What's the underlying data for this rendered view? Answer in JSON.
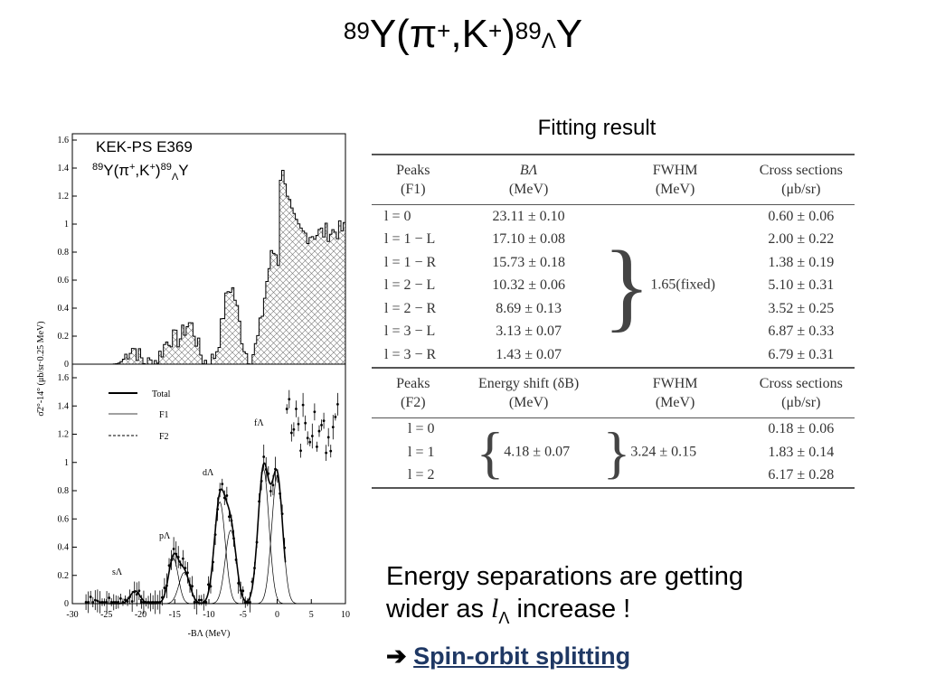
{
  "title": {
    "pre_sup": "89",
    "base": "Y(π",
    "plus1": "+",
    "mid": ",K",
    "plus2": "+",
    "close": ")",
    "sup2": "89",
    "lambda_sub": "Λ",
    "tail": "Y"
  },
  "fit_title": "Fitting result",
  "figure": {
    "inset_line1": "KEK-PS E369",
    "inset_sup": "89",
    "inset_base": "Y(π",
    "inset_plus1": "+",
    "inset_mid": ",K",
    "inset_plus2": "+",
    "inset_close": ")",
    "inset_sup2": "89",
    "inset_sub": "Λ",
    "inset_tail": "Y",
    "ylabel": "σ̄2°-14° (μb/sr·0.25 MeV)",
    "xlabel": "-BΛ (MeV)",
    "upper_yticks": [
      "1.6",
      "1.4",
      "1.2",
      "1",
      "0.8",
      "0.6",
      "0.4",
      "0.2",
      "0"
    ],
    "lower_yticks": [
      "1.6",
      "1.4",
      "1.2",
      "1",
      "0.8",
      "0.6",
      "0.4",
      "0.2",
      "0"
    ],
    "xticks": [
      "-30",
      "-25",
      "-20",
      "-15",
      "-10",
      "-5",
      "0",
      "5",
      "10"
    ],
    "legend": [
      "Total",
      "F1",
      "F2"
    ],
    "peak_labels": [
      "sΛ",
      "pΛ",
      "dΛ",
      "fΛ"
    ]
  },
  "table": {
    "section1_header": {
      "c1a": "Peaks",
      "c1b": "(F1)",
      "c2a": "BΛ",
      "c2b": "(MeV)",
      "c3a": "FWHM",
      "c3b": "(MeV)",
      "c4a": "Cross sections",
      "c4b": "(μb/sr)"
    },
    "section1_rows": [
      {
        "peak": "l = 0",
        "b": "23.11 ± 0.10",
        "xs": "0.60 ± 0.06"
      },
      {
        "peak": "l = 1 − L",
        "b": "17.10 ± 0.08",
        "xs": "2.00 ± 0.22"
      },
      {
        "peak": "l = 1 − R",
        "b": "15.73 ± 0.18",
        "xs": "1.38 ± 0.19"
      },
      {
        "peak": "l = 2 − L",
        "b": "10.32 ± 0.06",
        "xs": "5.10 ± 0.31"
      },
      {
        "peak": "l = 2 − R",
        "b": "8.69 ± 0.13",
        "xs": "3.52 ± 0.25"
      },
      {
        "peak": "l = 3 − L",
        "b": "3.13 ± 0.07",
        "xs": "6.87 ± 0.33"
      },
      {
        "peak": "l = 3 − R",
        "b": "1.43 ± 0.07",
        "xs": "6.79 ± 0.31"
      }
    ],
    "section1_fwhm": "1.65(fixed)",
    "section2_header": {
      "c1a": "Peaks",
      "c1b": "(F2)",
      "c2a": "Energy shift (δB)",
      "c2b": "(MeV)",
      "c3a": "FWHM",
      "c3b": "(MeV)",
      "c4a": "Cross sections",
      "c4b": "(μb/sr)"
    },
    "section2_rows": [
      {
        "peak": "l = 0",
        "xs": "0.18 ± 0.06"
      },
      {
        "peak": "l = 1",
        "xs": "1.83 ± 0.14"
      },
      {
        "peak": "l = 2",
        "xs": "6.17 ± 0.28"
      }
    ],
    "section2_shift": "4.18 ± 0.07",
    "section2_fwhm": "3.24 ± 0.15"
  },
  "note": {
    "line1": "Energy separations are getting",
    "line2_pre": "wider as ",
    "line2_var": "l",
    "line2_sub": "Λ",
    "line2_post": " increase !",
    "arrow": "➔",
    "link": "Spin-orbit splitting"
  }
}
